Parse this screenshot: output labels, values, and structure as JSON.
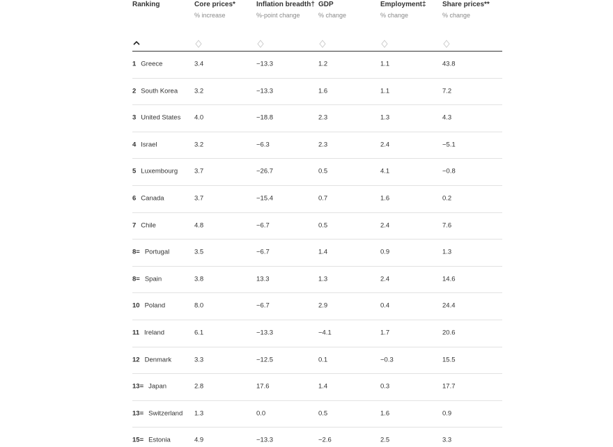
{
  "table": {
    "columns": [
      {
        "title": "Ranking"
      },
      {
        "title": "Core prices*",
        "subtitle": "% increase"
      },
      {
        "title": "Inflation breadth†",
        "subtitle": "%-point change"
      },
      {
        "title": "GDP",
        "subtitle": "% change"
      },
      {
        "title": "Employment‡",
        "subtitle": "% change"
      },
      {
        "title": "Share prices**",
        "subtitle": "% change"
      }
    ],
    "rows": [
      {
        "rank": "1",
        "country": "Greece",
        "values": [
          "3.4",
          "−13.3",
          "1.2",
          "1.1",
          "43.8"
        ]
      },
      {
        "rank": "2",
        "country": "South Korea",
        "values": [
          "3.2",
          "−13.3",
          "1.6",
          "1.1",
          "7.2"
        ]
      },
      {
        "rank": "3",
        "country": "United States",
        "values": [
          "4.0",
          "−18.8",
          "2.3",
          "1.3",
          "4.3"
        ]
      },
      {
        "rank": "4",
        "country": "Israel",
        "values": [
          "3.2",
          "−6.3",
          "2.3",
          "2.4",
          "−5.1"
        ]
      },
      {
        "rank": "5",
        "country": "Luxembourg",
        "values": [
          "3.7",
          "−26.7",
          "0.5",
          "4.1",
          "−0.8"
        ]
      },
      {
        "rank": "6",
        "country": "Canada",
        "values": [
          "3.7",
          "−15.4",
          "0.7",
          "1.6",
          "0.2"
        ]
      },
      {
        "rank": "7",
        "country": "Chile",
        "values": [
          "4.8",
          "−6.7",
          "0.5",
          "2.4",
          "7.6"
        ]
      },
      {
        "rank": "8=",
        "country": "Portugal",
        "values": [
          "3.5",
          "−6.7",
          "1.4",
          "0.9",
          "1.3"
        ]
      },
      {
        "rank": "8=",
        "country": "Spain",
        "values": [
          "3.8",
          "13.3",
          "1.3",
          "2.4",
          "14.6"
        ]
      },
      {
        "rank": "10",
        "country": "Poland",
        "values": [
          "8.0",
          "−6.7",
          "2.9",
          "0.4",
          "24.4"
        ]
      },
      {
        "rank": "11",
        "country": "Ireland",
        "values": [
          "6.1",
          "−13.3",
          "−4.1",
          "1.7",
          "20.6"
        ]
      },
      {
        "rank": "12",
        "country": "Denmark",
        "values": [
          "3.3",
          "−12.5",
          "0.1",
          "−0.3",
          "15.5"
        ]
      },
      {
        "rank": "13=",
        "country": "Japan",
        "values": [
          "2.8",
          "17.6",
          "1.4",
          "0.3",
          "17.7"
        ]
      },
      {
        "rank": "13=",
        "country": "Switzerland",
        "values": [
          "1.3",
          "0.0",
          "0.5",
          "1.6",
          "0.9"
        ]
      },
      {
        "rank": "15=",
        "country": "Estonia",
        "values": [
          "4.9",
          "−13.3",
          "−2.6",
          "2.5",
          "3.3"
        ]
      }
    ]
  }
}
